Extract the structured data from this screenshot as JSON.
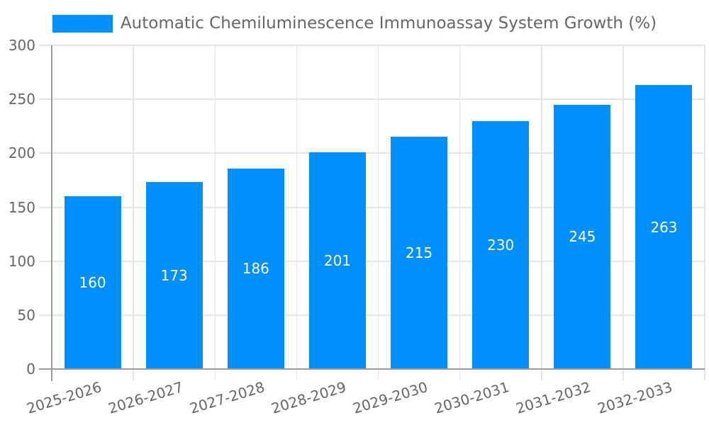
{
  "colors": {
    "bar": "#008FFB",
    "axis_text": "#666666",
    "grid_line": "#e5e5e5",
    "axis_line": "#9b9b9b",
    "data_label": "#ffffff",
    "background": "#ffffff"
  },
  "chart_data": {
    "type": "bar",
    "title": "Automatic Chemiluminescence Immunoassay System Growth (%)",
    "categories": [
      "2025-2026",
      "2026-2027",
      "2027-2028",
      "2028-2029",
      "2029-2030",
      "2030-2031",
      "2031-2032",
      "2032-2033"
    ],
    "values": [
      160,
      173,
      186,
      201,
      215,
      230,
      245,
      263
    ],
    "xlabel": "",
    "ylabel": "",
    "ylim": [
      0,
      300
    ],
    "yticks": [
      0,
      50,
      100,
      150,
      200,
      250,
      300
    ],
    "grid": true,
    "legend_position": "top",
    "data_labels_position": "inside-center",
    "x_tick_rotation_deg": -17
  }
}
